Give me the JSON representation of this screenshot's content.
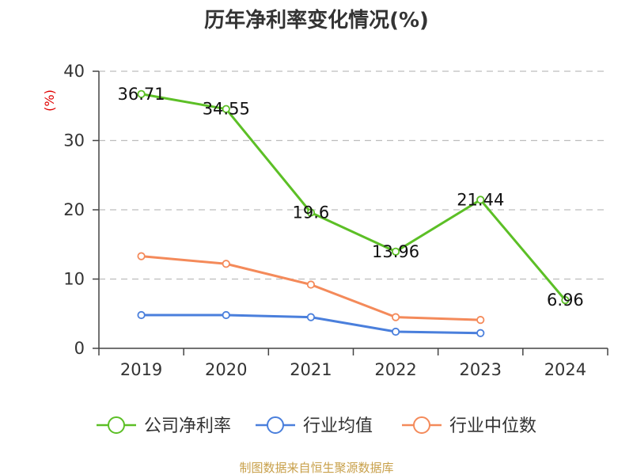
{
  "chart_data": {
    "type": "line",
    "title": "历年净利率变化情况(%)",
    "ylabel": "(%)",
    "xlabel": "",
    "categories": [
      "2019",
      "2020",
      "2021",
      "2022",
      "2023",
      "2024"
    ],
    "ylim": [
      0,
      40
    ],
    "yticks": [
      0,
      10,
      20,
      30,
      40
    ],
    "grid": true,
    "legend_position": "bottom",
    "series": [
      {
        "name": "公司净利率",
        "color": "#5cbf26",
        "values": [
          36.71,
          34.55,
          19.6,
          13.96,
          21.44,
          6.96
        ],
        "labels": [
          "36.71",
          "34.55",
          "19.6",
          "13.96",
          "21.44",
          "6.96"
        ]
      },
      {
        "name": "行业均值",
        "color": "#4a7fdc",
        "values": [
          4.8,
          4.8,
          4.5,
          2.4,
          2.2,
          null
        ]
      },
      {
        "name": "行业中位数",
        "color": "#f48a5a",
        "values": [
          13.3,
          12.2,
          9.2,
          4.5,
          4.1,
          null
        ]
      }
    ]
  },
  "footer": {
    "source": "制图数据来自恒生聚源数据库"
  }
}
